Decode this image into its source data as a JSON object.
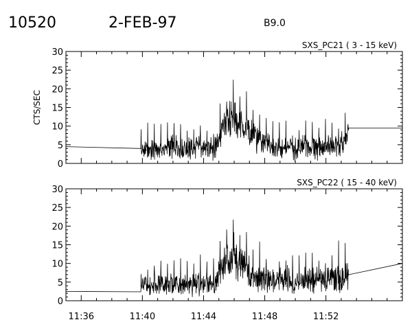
{
  "header": {
    "event_id": "10520",
    "date": "2-FEB-97",
    "flare_class": "B9.0"
  },
  "chart_data": [
    {
      "type": "line",
      "title": "SXS_PC21  (  3 - 15 keV)",
      "xlabel": "",
      "ylabel": "CTS/SEC",
      "ylim": [
        0,
        30
      ],
      "yticks": [
        0,
        5,
        10,
        15,
        20,
        25,
        30
      ],
      "xlim": [
        "11:35",
        "11:57"
      ],
      "xticks": [
        "11:36",
        "11:40",
        "11:44",
        "11:48",
        "11:52"
      ],
      "grid": false,
      "series": [
        {
          "x": [
            "11:35:00",
            "11:39:54",
            "11:39:55",
            "11:40:15",
            "11:40:45",
            "11:41:15",
            "11:41:45",
            "11:42:15",
            "11:42:45",
            "11:43:15",
            "11:43:45",
            "11:44:15",
            "11:44:45",
            "11:45:00",
            "11:45:20",
            "11:45:40",
            "11:45:50",
            "11:46:00",
            "11:46:10",
            "11:46:30",
            "11:46:50",
            "11:47:10",
            "11:47:30",
            "11:48:00",
            "11:48:30",
            "11:49:00",
            "11:49:30",
            "11:50:00",
            "11:50:30",
            "11:51:00",
            "11:51:30",
            "11:52:00",
            "11:52:30",
            "11:53:00",
            "11:53:15",
            "11:53:28",
            "11:53:30",
            "11:57:00"
          ],
          "y": [
            4.5,
            4.0,
            3.5,
            3.8,
            4.2,
            3.6,
            4.5,
            3.9,
            4.1,
            3.7,
            4.6,
            3.9,
            4.2,
            7.0,
            10.5,
            11.5,
            13.5,
            12.0,
            11.0,
            10.5,
            9.5,
            8.0,
            6.5,
            5.0,
            4.4,
            4.0,
            4.3,
            3.9,
            4.6,
            4.2,
            4.0,
            4.5,
            4.1,
            4.8,
            5.5,
            9.0,
            9.5,
            9.5
          ]
        }
      ]
    },
    {
      "type": "line",
      "title": "SXS_PC22  ( 15 - 40 keV)",
      "xlabel": "",
      "ylabel": "",
      "ylim": [
        0,
        30
      ],
      "yticks": [
        0,
        5,
        10,
        15,
        20,
        25,
        30
      ],
      "xlim": [
        "11:35",
        "11:57"
      ],
      "xticks": [
        "11:36",
        "11:40",
        "11:44",
        "11:48",
        "11:52"
      ],
      "grid": false,
      "series": [
        {
          "x": [
            "11:35:00",
            "11:39:54",
            "11:39:55",
            "11:40:15",
            "11:40:45",
            "11:41:15",
            "11:41:45",
            "11:42:15",
            "11:42:45",
            "11:43:15",
            "11:43:45",
            "11:44:15",
            "11:44:45",
            "11:45:00",
            "11:45:20",
            "11:45:40",
            "11:45:50",
            "11:46:00",
            "11:46:10",
            "11:46:30",
            "11:46:50",
            "11:47:10",
            "11:47:30",
            "11:48:00",
            "11:48:30",
            "11:49:00",
            "11:49:30",
            "11:50:00",
            "11:50:30",
            "11:51:00",
            "11:51:30",
            "11:52:00",
            "11:52:30",
            "11:53:00",
            "11:53:15",
            "11:53:28",
            "11:53:30",
            "11:57:00"
          ],
          "y": [
            2.5,
            2.4,
            4.0,
            4.3,
            3.8,
            4.5,
            3.9,
            4.4,
            4.1,
            3.9,
            4.6,
            4.2,
            4.8,
            7.0,
            9.5,
            10.0,
            9.0,
            15.0,
            10.0,
            9.5,
            8.5,
            7.5,
            6.5,
            5.5,
            5.0,
            5.2,
            5.8,
            4.8,
            5.3,
            5.6,
            5.1,
            5.4,
            5.8,
            6.0,
            6.5,
            6.8,
            7.0,
            10.0
          ]
        }
      ]
    }
  ]
}
